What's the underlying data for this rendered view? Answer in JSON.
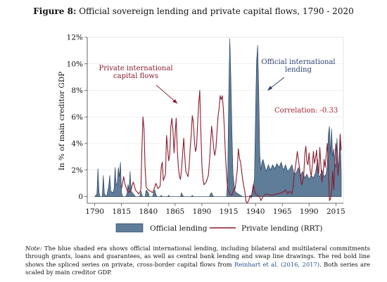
{
  "figure": {
    "label": "Figure 8:",
    "title": "Official sovereign lending and private capital flows, 1790 - 2020"
  },
  "note": {
    "label": "Note:",
    "before_cite": "The blue shaded era shows official international lending, including bilateral and multilateral commitments through grants, loans and guarantees, as well as central bank lending and swap line drawings. The red bold line shows the spliced series on private, cross-border capital flows from",
    "cite": "Reinhart et al. (2016, 2017)",
    "after_cite": ". Both series are scaled by main creditor GDP."
  },
  "colors": {
    "official_fill": "#5f7c98",
    "official_stroke": "#1f3a5a",
    "private_line": "#8b1c2c",
    "annotation_private": "#8b1c2c",
    "annotation_official": "#2b3f6e",
    "correlation": "#a3202e"
  },
  "chart_data": {
    "type": "area",
    "title": "",
    "xlabel": "",
    "ylabel": "In % of main creditor GDP",
    "xlim": [
      1783,
      2022
    ],
    "ylim": [
      -0.5,
      12
    ],
    "xticks": [
      1790,
      1815,
      1840,
      1865,
      1890,
      1915,
      1940,
      1965,
      1990,
      2015
    ],
    "yticks": [
      0,
      2,
      4,
      6,
      8,
      10,
      12
    ],
    "ytick_labels": [
      "0",
      "2%",
      "4%",
      "6%",
      "8%",
      "10%",
      "12%"
    ],
    "grid": true,
    "legend": "bottom",
    "annotations": [
      {
        "text_lines": [
          "Private international",
          "capital flows"
        ],
        "series": "private"
      },
      {
        "text_lines": [
          "Official international",
          "lending"
        ],
        "series": "official"
      },
      {
        "text_lines": [
          "Correlation: -0.33"
        ],
        "series": "correlation"
      }
    ],
    "series": [
      {
        "name": "Official lending",
        "kind": "area",
        "points": [
          [
            1790,
            0
          ],
          [
            1792,
            0.2
          ],
          [
            1793,
            2.1
          ],
          [
            1794,
            0.3
          ],
          [
            1795,
            0
          ],
          [
            1797,
            0
          ],
          [
            1798,
            1.6
          ],
          [
            1799,
            0.2
          ],
          [
            1801,
            0
          ],
          [
            1803,
            0.8
          ],
          [
            1804,
            1.6
          ],
          [
            1805,
            0.4
          ],
          [
            1807,
            0.3
          ],
          [
            1808,
            0.6
          ],
          [
            1809,
            2.2
          ],
          [
            1810,
            0.9
          ],
          [
            1811,
            1.0
          ],
          [
            1812,
            2.2
          ],
          [
            1813,
            1.5
          ],
          [
            1814,
            2.6
          ],
          [
            1815,
            0.3
          ],
          [
            1816,
            0
          ],
          [
            1819,
            0
          ],
          [
            1820,
            0.2
          ],
          [
            1821,
            0.9
          ],
          [
            1822,
            0.5
          ],
          [
            1823,
            1.9
          ],
          [
            1824,
            0.4
          ],
          [
            1825,
            0.3
          ],
          [
            1826,
            0.2
          ],
          [
            1827,
            0.1
          ],
          [
            1828,
            0
          ],
          [
            1832,
            0
          ],
          [
            1833,
            0.4
          ],
          [
            1834,
            0.1
          ],
          [
            1835,
            0
          ],
          [
            1837,
            0
          ],
          [
            1838,
            0.5
          ],
          [
            1839,
            0.4
          ],
          [
            1840,
            0.3
          ],
          [
            1841,
            0
          ],
          [
            1844,
            0
          ],
          [
            1845,
            0.3
          ],
          [
            1846,
            0.5
          ],
          [
            1847,
            0.2
          ],
          [
            1848,
            0
          ],
          [
            1851,
            0
          ],
          [
            1852,
            0.1
          ],
          [
            1853,
            0
          ],
          [
            1858,
            0
          ],
          [
            1859,
            0.1
          ],
          [
            1860,
            0
          ],
          [
            1870,
            0
          ],
          [
            1871,
            0.3
          ],
          [
            1872,
            0.1
          ],
          [
            1873,
            0
          ],
          [
            1880,
            0
          ],
          [
            1881,
            0.1
          ],
          [
            1882,
            0
          ],
          [
            1897,
            0
          ],
          [
            1898,
            0.2
          ],
          [
            1899,
            0.3
          ],
          [
            1900,
            0.1
          ],
          [
            1901,
            0
          ],
          [
            1913,
            0
          ],
          [
            1914,
            1.2
          ],
          [
            1915,
            7.5
          ],
          [
            1916,
            11.9
          ],
          [
            1917,
            9.0
          ],
          [
            1918,
            5.0
          ],
          [
            1919,
            1.8
          ],
          [
            1920,
            0.9
          ],
          [
            1921,
            0.4
          ],
          [
            1922,
            0.3
          ],
          [
            1924,
            0.2
          ],
          [
            1926,
            0.1
          ],
          [
            1928,
            0
          ],
          [
            1934,
            0
          ],
          [
            1935,
            0.1
          ],
          [
            1937,
            0
          ],
          [
            1939,
            1.4
          ],
          [
            1940,
            6.0
          ],
          [
            1941,
            10.2
          ],
          [
            1942,
            11.4
          ],
          [
            1943,
            8.0
          ],
          [
            1944,
            3.2
          ],
          [
            1945,
            2.0
          ],
          [
            1946,
            2.6
          ],
          [
            1947,
            2.8
          ],
          [
            1948,
            2.5
          ],
          [
            1950,
            1.9
          ],
          [
            1952,
            2.4
          ],
          [
            1954,
            2.0
          ],
          [
            1956,
            2.4
          ],
          [
            1958,
            2.1
          ],
          [
            1960,
            2.5
          ],
          [
            1962,
            2.2
          ],
          [
            1964,
            2.6
          ],
          [
            1966,
            2.0
          ],
          [
            1968,
            2.4
          ],
          [
            1970,
            1.9
          ],
          [
            1972,
            2.1
          ],
          [
            1974,
            2.4
          ],
          [
            1976,
            1.7
          ],
          [
            1978,
            1.8
          ],
          [
            1980,
            2.2
          ],
          [
            1982,
            1.6
          ],
          [
            1984,
            1.9
          ],
          [
            1986,
            1.4
          ],
          [
            1988,
            1.7
          ],
          [
            1990,
            1.3
          ],
          [
            1992,
            1.6
          ],
          [
            1994,
            1.4
          ],
          [
            1996,
            1.8
          ],
          [
            1998,
            2.8
          ],
          [
            1999,
            1.6
          ],
          [
            2000,
            1.5
          ],
          [
            2002,
            2.0
          ],
          [
            2004,
            1.5
          ],
          [
            2006,
            1.7
          ],
          [
            2007,
            2.5
          ],
          [
            2008,
            4.7
          ],
          [
            2009,
            5.3
          ],
          [
            2010,
            3.2
          ],
          [
            2011,
            5.1
          ],
          [
            2012,
            3.0
          ],
          [
            2013,
            3.6
          ],
          [
            2014,
            2.6
          ],
          [
            2015,
            2.2
          ],
          [
            2016,
            4.4
          ],
          [
            2017,
            2.6
          ],
          [
            2018,
            2.2
          ],
          [
            2019,
            4.5
          ],
          [
            2020,
            1.9
          ]
        ]
      },
      {
        "name": "Private lending (RRT)",
        "kind": "line",
        "points": [
          [
            1815,
            0.6
          ],
          [
            1817,
            1.5
          ],
          [
            1818,
            1.0
          ],
          [
            1820,
            0.5
          ],
          [
            1822,
            0.3
          ],
          [
            1824,
            0.5
          ],
          [
            1825,
            0.9
          ],
          [
            1826,
            1.1
          ],
          [
            1828,
            0.5
          ],
          [
            1831,
            0.2
          ],
          [
            1833,
            0.5
          ],
          [
            1834,
            3.6
          ],
          [
            1835,
            6.0
          ],
          [
            1836,
            5.1
          ],
          [
            1837,
            2.2
          ],
          [
            1838,
            0.7
          ],
          [
            1840,
            0.5
          ],
          [
            1842,
            0.4
          ],
          [
            1844,
            0.3
          ],
          [
            1846,
            0.7
          ],
          [
            1847,
            1.0
          ],
          [
            1849,
            0.6
          ],
          [
            1851,
            0.8
          ],
          [
            1852,
            2.2
          ],
          [
            1853,
            2.6
          ],
          [
            1854,
            1.2
          ],
          [
            1856,
            1.7
          ],
          [
            1857,
            4.6
          ],
          [
            1858,
            3.7
          ],
          [
            1859,
            2.7
          ],
          [
            1860,
            3.2
          ],
          [
            1861,
            5.3
          ],
          [
            1862,
            5.9
          ],
          [
            1863,
            5.0
          ],
          [
            1864,
            3.3
          ],
          [
            1865,
            4.7
          ],
          [
            1866,
            5.9
          ],
          [
            1867,
            3.6
          ],
          [
            1868,
            2.2
          ],
          [
            1869,
            1.5
          ],
          [
            1870,
            1.3
          ],
          [
            1871,
            2.1
          ],
          [
            1872,
            3.2
          ],
          [
            1873,
            4.4
          ],
          [
            1874,
            3.0
          ],
          [
            1875,
            1.9
          ],
          [
            1877,
            1.5
          ],
          [
            1878,
            2.2
          ],
          [
            1879,
            3.6
          ],
          [
            1880,
            4.6
          ],
          [
            1881,
            6.1
          ],
          [
            1882,
            5.6
          ],
          [
            1883,
            4.2
          ],
          [
            1884,
            3.4
          ],
          [
            1885,
            3.7
          ],
          [
            1886,
            5.5
          ],
          [
            1887,
            7.0
          ],
          [
            1888,
            8.0
          ],
          [
            1889,
            5.0
          ],
          [
            1890,
            2.3
          ],
          [
            1891,
            1.3
          ],
          [
            1892,
            0.9
          ],
          [
            1894,
            1.1
          ],
          [
            1896,
            1.6
          ],
          [
            1897,
            2.6
          ],
          [
            1898,
            3.8
          ],
          [
            1899,
            5.3
          ],
          [
            1900,
            4.6
          ],
          [
            1901,
            3.6
          ],
          [
            1902,
            3.1
          ],
          [
            1903,
            3.6
          ],
          [
            1904,
            4.8
          ],
          [
            1905,
            6.0
          ],
          [
            1906,
            6.6
          ],
          [
            1907,
            7.6
          ],
          [
            1908,
            7.3
          ],
          [
            1909,
            7.6
          ],
          [
            1910,
            6.6
          ],
          [
            1911,
            5.1
          ],
          [
            1912,
            3.0
          ],
          [
            1913,
            1.6
          ],
          [
            1914,
            0.6
          ],
          [
            1916,
            0.2
          ],
          [
            1918,
            0.1
          ],
          [
            1920,
            0.6
          ],
          [
            1921,
            0.6
          ],
          [
            1923,
            2.0
          ],
          [
            1924,
            3.6
          ],
          [
            1925,
            2.9
          ],
          [
            1926,
            2.6
          ],
          [
            1927,
            2.0
          ],
          [
            1928,
            1.3
          ],
          [
            1929,
            0.8
          ],
          [
            1930,
            0.4
          ],
          [
            1931,
            -0.3
          ],
          [
            1932,
            -0.5
          ],
          [
            1933,
            -0.4
          ],
          [
            1934,
            -0.2
          ],
          [
            1935,
            0.1
          ],
          [
            1936,
            -0.1
          ],
          [
            1937,
            0.4
          ],
          [
            1938,
            0.9
          ],
          [
            1939,
            0.5
          ],
          [
            1940,
            0.2
          ],
          [
            1942,
            0.1
          ],
          [
            1944,
            0
          ],
          [
            1945,
            -0.3
          ],
          [
            1947,
            0
          ],
          [
            1950,
            0.2
          ],
          [
            1955,
            0.1
          ],
          [
            1960,
            0.2
          ],
          [
            1965,
            0.3
          ],
          [
            1968,
            0.5
          ],
          [
            1970,
            0.2
          ],
          [
            1972,
            0.4
          ],
          [
            1974,
            0.2
          ],
          [
            1975,
            0.7
          ],
          [
            1976,
            1.5
          ],
          [
            1977,
            2.1
          ],
          [
            1978,
            2.7
          ],
          [
            1979,
            3.4
          ],
          [
            1980,
            2.8
          ],
          [
            1981,
            2.2
          ],
          [
            1982,
            1.4
          ],
          [
            1983,
            0.9
          ],
          [
            1984,
            1.1
          ],
          [
            1985,
            1.5
          ],
          [
            1986,
            3.2
          ],
          [
            1987,
            3.8
          ],
          [
            1988,
            2.6
          ],
          [
            1989,
            2.4
          ],
          [
            1990,
            3.3
          ],
          [
            1991,
            2.0
          ],
          [
            1992,
            1.5
          ],
          [
            1993,
            2.3
          ],
          [
            1994,
            3.4
          ],
          [
            1995,
            2.5
          ],
          [
            1996,
            2.9
          ],
          [
            1997,
            3.5
          ],
          [
            1998,
            2.0
          ],
          [
            1999,
            1.7
          ],
          [
            2000,
            3.7
          ],
          [
            2001,
            2.4
          ],
          [
            2002,
            1.1
          ],
          [
            2003,
            1.6
          ],
          [
            2004,
            2.8
          ],
          [
            2005,
            2.2
          ],
          [
            2006,
            3.1
          ],
          [
            2007,
            4.0
          ],
          [
            2008,
            2.2
          ],
          [
            2009,
            -0.3
          ],
          [
            2010,
            -0.2
          ],
          [
            2011,
            0.4
          ],
          [
            2012,
            1.9
          ],
          [
            2013,
            0.5
          ],
          [
            2014,
            2.5
          ],
          [
            2015,
            4.0
          ],
          [
            2016,
            2.6
          ],
          [
            2017,
            1.6
          ],
          [
            2018,
            2.5
          ],
          [
            2019,
            4.7
          ],
          [
            2020,
            3.5
          ]
        ]
      }
    ]
  },
  "legend": {
    "official_label": "Official lending",
    "private_label": "Private lending (RRT)"
  }
}
